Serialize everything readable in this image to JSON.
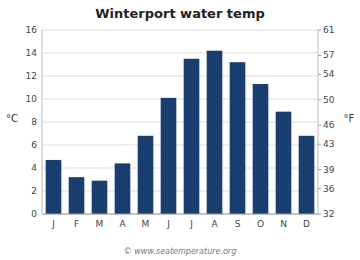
{
  "chart_data": {
    "type": "bar",
    "title": "Winterport water temp",
    "categories": [
      "J",
      "F",
      "M",
      "A",
      "M",
      "J",
      "J",
      "A",
      "S",
      "O",
      "N",
      "D"
    ],
    "values": [
      4.7,
      3.2,
      2.9,
      4.4,
      6.8,
      10.1,
      13.5,
      14.2,
      13.2,
      11.3,
      8.9,
      6.8
    ],
    "color": "#1a3f6f",
    "ylabel": "°C",
    "y2label": "°F",
    "ylim": [
      0,
      16
    ],
    "yticks": [
      0,
      2,
      4,
      6,
      8,
      10,
      12,
      14,
      16
    ],
    "y2lim": [
      32,
      61
    ],
    "y2ticks": [
      32,
      36,
      39,
      43,
      46,
      50,
      54,
      57,
      61
    ],
    "grid": true,
    "annotations": [
      "© www.seatemperature.org"
    ]
  }
}
